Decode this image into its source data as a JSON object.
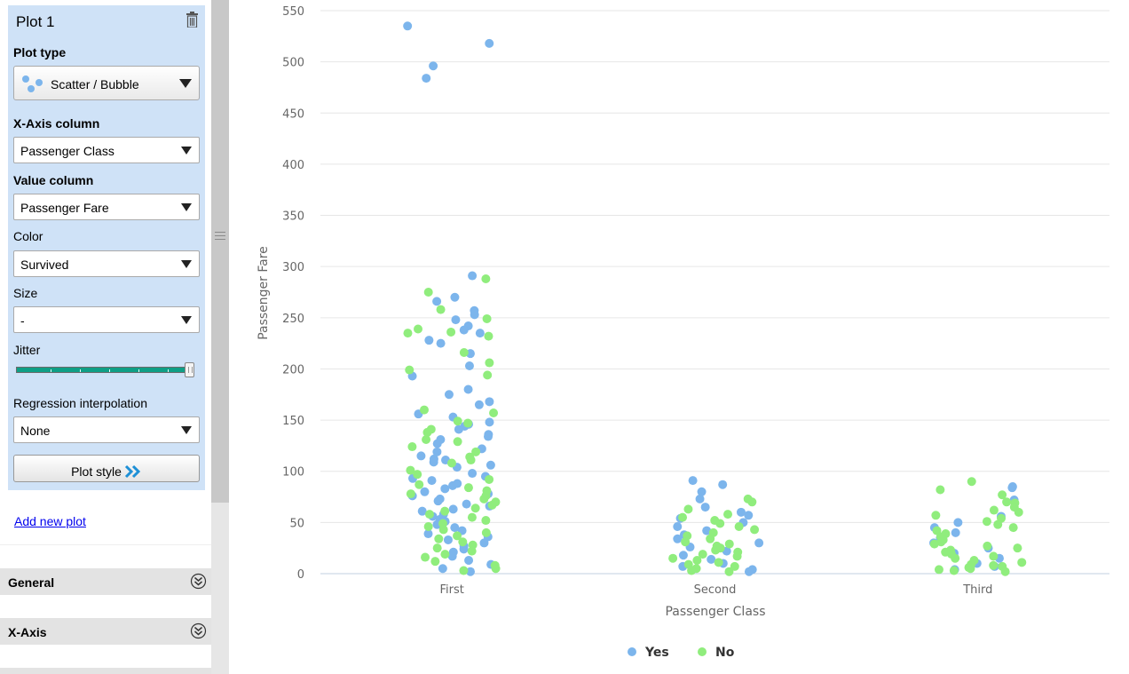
{
  "sidebar": {
    "panel_title": "Plot 1",
    "plot_type_label": "Plot type",
    "plot_type_value": "Scatter / Bubble",
    "x_axis_label": "X-Axis column",
    "x_axis_value": "Passenger Class",
    "value_label": "Value column",
    "value_value": "Passenger Fare",
    "color_label": "Color",
    "color_value": "Survived",
    "size_label": "Size",
    "size_value": "-",
    "jitter_label": "Jitter",
    "jitter_level": 1.0,
    "regression_label": "Regression interpolation",
    "regression_value": "None",
    "plot_style_label": "Plot style",
    "add_plot_label": "Add new plot",
    "sections": [
      "General",
      "X-Axis"
    ]
  },
  "icons": {
    "trash": "trash-icon",
    "plot_type": "scatter-icon",
    "plot_style": "double-chevron-right-icon",
    "section": "expand-circle-icon"
  },
  "chart_data": {
    "type": "scatter",
    "xlabel": "Passenger Class",
    "ylabel": "Passenger Fare",
    "categories": [
      "First",
      "Second",
      "Third"
    ],
    "ylim": [
      0,
      550
    ],
    "yticks": [
      0,
      50,
      100,
      150,
      200,
      250,
      300,
      350,
      400,
      450,
      500,
      550
    ],
    "grid": true,
    "legend_position": "bottom-center",
    "jitter": true,
    "series": [
      {
        "name": "Yes",
        "color": "#7cb5ec",
        "points": [
          [
            "First",
            535
          ],
          [
            "First",
            518
          ],
          [
            "First",
            496
          ],
          [
            "First",
            484
          ],
          [
            "First",
            291
          ],
          [
            "First",
            270
          ],
          [
            "First",
            266
          ],
          [
            "First",
            257
          ],
          [
            "First",
            253
          ],
          [
            "First",
            248
          ],
          [
            "First",
            242
          ],
          [
            "First",
            238
          ],
          [
            "First",
            235
          ],
          [
            "First",
            228
          ],
          [
            "First",
            225
          ],
          [
            "First",
            215
          ],
          [
            "First",
            203
          ],
          [
            "First",
            193
          ],
          [
            "First",
            180
          ],
          [
            "First",
            175
          ],
          [
            "First",
            168
          ],
          [
            "First",
            165
          ],
          [
            "First",
            156
          ],
          [
            "First",
            153
          ],
          [
            "First",
            148
          ],
          [
            "First",
            146
          ],
          [
            "First",
            144
          ],
          [
            "First",
            141
          ],
          [
            "First",
            136
          ],
          [
            "First",
            134
          ],
          [
            "First",
            131
          ],
          [
            "First",
            127
          ],
          [
            "First",
            122
          ],
          [
            "First",
            119
          ],
          [
            "First",
            115
          ],
          [
            "First",
            112
          ],
          [
            "First",
            111
          ],
          [
            "First",
            109
          ],
          [
            "First",
            106
          ],
          [
            "First",
            104
          ],
          [
            "First",
            98
          ],
          [
            "First",
            95
          ],
          [
            "First",
            93
          ],
          [
            "First",
            91
          ],
          [
            "First",
            88
          ],
          [
            "First",
            86
          ],
          [
            "First",
            83
          ],
          [
            "First",
            80
          ],
          [
            "First",
            78
          ],
          [
            "First",
            76
          ],
          [
            "First",
            73
          ],
          [
            "First",
            71
          ],
          [
            "First",
            68
          ],
          [
            "First",
            66
          ],
          [
            "First",
            63
          ],
          [
            "First",
            61
          ],
          [
            "First",
            58
          ],
          [
            "First",
            56
          ],
          [
            "First",
            53
          ],
          [
            "First",
            51
          ],
          [
            "First",
            48
          ],
          [
            "First",
            45
          ],
          [
            "First",
            42
          ],
          [
            "First",
            39
          ],
          [
            "First",
            36
          ],
          [
            "First",
            33
          ],
          [
            "First",
            30
          ],
          [
            "First",
            27
          ],
          [
            "First",
            24
          ],
          [
            "First",
            21
          ],
          [
            "First",
            17
          ],
          [
            "First",
            13
          ],
          [
            "First",
            9
          ],
          [
            "First",
            5
          ],
          [
            "First",
            2
          ],
          [
            "Second",
            91
          ],
          [
            "Second",
            87
          ],
          [
            "Second",
            80
          ],
          [
            "Second",
            73
          ],
          [
            "Second",
            65
          ],
          [
            "Second",
            60
          ],
          [
            "Second",
            57
          ],
          [
            "Second",
            54
          ],
          [
            "Second",
            50
          ],
          [
            "Second",
            46
          ],
          [
            "Second",
            42
          ],
          [
            "Second",
            38
          ],
          [
            "Second",
            34
          ],
          [
            "Second",
            30
          ],
          [
            "Second",
            26
          ],
          [
            "Second",
            22
          ],
          [
            "Second",
            18
          ],
          [
            "Second",
            14
          ],
          [
            "Second",
            10
          ],
          [
            "Second",
            7
          ],
          [
            "Second",
            4
          ],
          [
            "Second",
            2
          ],
          [
            "Third",
            85
          ],
          [
            "Third",
            84
          ],
          [
            "Third",
            72
          ],
          [
            "Third",
            56
          ],
          [
            "Third",
            50
          ],
          [
            "Third",
            45
          ],
          [
            "Third",
            40
          ],
          [
            "Third",
            35
          ],
          [
            "Third",
            30
          ],
          [
            "Third",
            25
          ],
          [
            "Third",
            20
          ],
          [
            "Third",
            15
          ],
          [
            "Third",
            10
          ],
          [
            "Third",
            7
          ],
          [
            "Third",
            4
          ]
        ]
      },
      {
        "name": "No",
        "color": "#90ed7d",
        "points": [
          [
            "First",
            288
          ],
          [
            "First",
            275
          ],
          [
            "First",
            258
          ],
          [
            "First",
            249
          ],
          [
            "First",
            239
          ],
          [
            "First",
            236
          ],
          [
            "First",
            235
          ],
          [
            "First",
            232
          ],
          [
            "First",
            216
          ],
          [
            "First",
            206
          ],
          [
            "First",
            199
          ],
          [
            "First",
            194
          ],
          [
            "First",
            160
          ],
          [
            "First",
            157
          ],
          [
            "First",
            149
          ],
          [
            "First",
            147
          ],
          [
            "First",
            141
          ],
          [
            "First",
            138
          ],
          [
            "First",
            131
          ],
          [
            "First",
            129
          ],
          [
            "First",
            124
          ],
          [
            "First",
            119
          ],
          [
            "First",
            114
          ],
          [
            "First",
            111
          ],
          [
            "First",
            108
          ],
          [
            "First",
            101
          ],
          [
            "First",
            97
          ],
          [
            "First",
            92
          ],
          [
            "First",
            87
          ],
          [
            "First",
            84
          ],
          [
            "First",
            81
          ],
          [
            "First",
            78
          ],
          [
            "First",
            76
          ],
          [
            "First",
            73
          ],
          [
            "First",
            70
          ],
          [
            "First",
            67
          ],
          [
            "First",
            64
          ],
          [
            "First",
            61
          ],
          [
            "First",
            58
          ],
          [
            "First",
            55
          ],
          [
            "First",
            52
          ],
          [
            "First",
            49
          ],
          [
            "First",
            46
          ],
          [
            "First",
            43
          ],
          [
            "First",
            40
          ],
          [
            "First",
            37
          ],
          [
            "First",
            34
          ],
          [
            "First",
            31
          ],
          [
            "First",
            28
          ],
          [
            "First",
            25
          ],
          [
            "First",
            22
          ],
          [
            "First",
            19
          ],
          [
            "First",
            16
          ],
          [
            "First",
            12
          ],
          [
            "First",
            8
          ],
          [
            "First",
            5
          ],
          [
            "First",
            3
          ],
          [
            "Second",
            73
          ],
          [
            "Second",
            70
          ],
          [
            "Second",
            63
          ],
          [
            "Second",
            58
          ],
          [
            "Second",
            55
          ],
          [
            "Second",
            52
          ],
          [
            "Second",
            49
          ],
          [
            "Second",
            46
          ],
          [
            "Second",
            43
          ],
          [
            "Second",
            40
          ],
          [
            "Second",
            37
          ],
          [
            "Second",
            34
          ],
          [
            "Second",
            31
          ],
          [
            "Second",
            29
          ],
          [
            "Second",
            27
          ],
          [
            "Second",
            25
          ],
          [
            "Second",
            23
          ],
          [
            "Second",
            21
          ],
          [
            "Second",
            19
          ],
          [
            "Second",
            17
          ],
          [
            "Second",
            15
          ],
          [
            "Second",
            13
          ],
          [
            "Second",
            11
          ],
          [
            "Second",
            9
          ],
          [
            "Second",
            7
          ],
          [
            "Second",
            5
          ],
          [
            "Second",
            3
          ],
          [
            "Second",
            2
          ],
          [
            "Third",
            90
          ],
          [
            "Third",
            82
          ],
          [
            "Third",
            77
          ],
          [
            "Third",
            70
          ],
          [
            "Third",
            69
          ],
          [
            "Third",
            65
          ],
          [
            "Third",
            62
          ],
          [
            "Third",
            60
          ],
          [
            "Third",
            57
          ],
          [
            "Third",
            54
          ],
          [
            "Third",
            51
          ],
          [
            "Third",
            48
          ],
          [
            "Third",
            45
          ],
          [
            "Third",
            42
          ],
          [
            "Third",
            39
          ],
          [
            "Third",
            36
          ],
          [
            "Third",
            33
          ],
          [
            "Third",
            31
          ],
          [
            "Third",
            29
          ],
          [
            "Third",
            27
          ],
          [
            "Third",
            25
          ],
          [
            "Third",
            23
          ],
          [
            "Third",
            21
          ],
          [
            "Third",
            19
          ],
          [
            "Third",
            17
          ],
          [
            "Third",
            15
          ],
          [
            "Third",
            13
          ],
          [
            "Third",
            11
          ],
          [
            "Third",
            9
          ],
          [
            "Third",
            8
          ],
          [
            "Third",
            7
          ],
          [
            "Third",
            6
          ],
          [
            "Third",
            5
          ],
          [
            "Third",
            4
          ],
          [
            "Third",
            3
          ],
          [
            "Third",
            2
          ]
        ]
      }
    ]
  }
}
